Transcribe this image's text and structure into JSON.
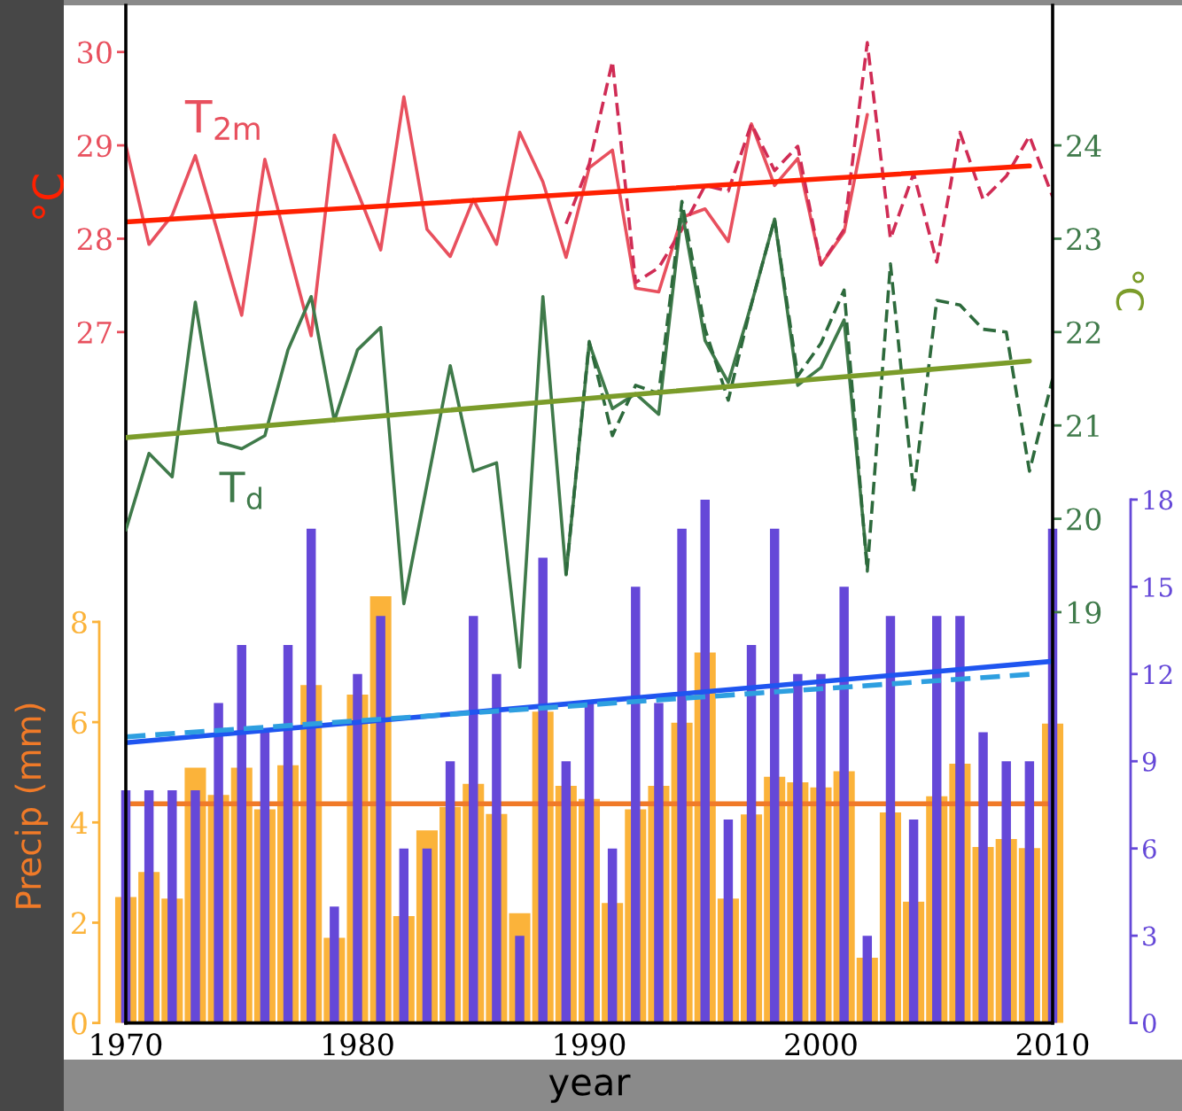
{
  "chart_data": [
    {
      "type": "line",
      "ylabel": "°C",
      "y2label": "°C",
      "tick_labels": "y",
      "xlim": [
        1970,
        2010
      ],
      "ylim": [
        19.6,
        30.5
      ],
      "yticks": [
        27,
        28,
        29,
        30
      ],
      "y2lim": [
        14.6,
        25.5
      ],
      "y2ticks": [
        19,
        20,
        21,
        22,
        23,
        24
      ],
      "series": [
        {
          "name": "T$_{2m}$",
          "color": "#e8505e",
          "x": [
            1970,
            1971,
            1972,
            1973,
            1974,
            1975,
            1976,
            1977,
            1978,
            1979,
            1980,
            1981,
            1982,
            1983,
            1984,
            1985,
            1986,
            1987,
            1988,
            1989,
            1990,
            1991,
            1992,
            1993,
            1994,
            1995,
            1996,
            1997,
            1998,
            1999,
            2000,
            2001,
            2002
          ],
          "values": [
            29.0,
            27.94,
            28.25,
            28.89,
            28.04,
            27.18,
            28.85,
            27.9,
            26.96,
            29.11,
            28.5,
            27.88,
            29.52,
            28.1,
            27.81,
            28.42,
            27.94,
            29.14,
            28.61,
            27.8,
            28.76,
            28.95,
            27.47,
            27.43,
            28.23,
            28.32,
            27.97,
            29.23,
            28.57,
            28.86,
            27.72,
            28.07,
            29.33
          ]
        },
        {
          "color": "#d02c55",
          "line_style": "dashed",
          "x": [
            1989,
            1990,
            1991,
            1992,
            1993,
            1994,
            1995,
            1996,
            1997,
            1998,
            1999,
            2000,
            2001,
            2002,
            2003,
            2004,
            2005,
            2006,
            2007,
            2008,
            2009,
            2010
          ],
          "values": [
            28.16,
            28.8,
            29.9,
            27.53,
            27.69,
            28.1,
            28.57,
            28.51,
            29.23,
            28.73,
            28.99,
            27.72,
            28.1,
            30.1,
            28.0,
            28.7,
            27.75,
            29.14,
            28.42,
            28.67,
            29.1,
            28.45
          ]
        },
        {
          "color": "#ff2000",
          "x": [
            1970,
            2009
          ],
          "values": [
            28.18,
            28.78
          ]
        },
        {
          "name": "T$_{d}$",
          "axis": "y2",
          "color": "#3f7a4a",
          "x": [
            1970,
            1971,
            1972,
            1973,
            1974,
            1975,
            1976,
            1977,
            1978,
            1979,
            1980,
            1981,
            1982,
            1983,
            1984,
            1985,
            1986,
            1987,
            1988,
            1989,
            1990,
            1991,
            1992,
            1993,
            1994,
            1995,
            1996,
            1997,
            1998,
            1999,
            2000,
            2001,
            2002
          ],
          "values": [
            19.88,
            20.7,
            20.45,
            22.32,
            20.82,
            20.75,
            20.89,
            21.81,
            22.38,
            21.05,
            21.81,
            22.05,
            19.09,
            20.37,
            21.64,
            20.51,
            20.6,
            18.41,
            22.38,
            19.4,
            21.88,
            21.18,
            21.34,
            21.12,
            23.3,
            21.91,
            21.46,
            22.3,
            23.21,
            21.43,
            21.62,
            22.13,
            19.5
          ]
        },
        {
          "axis": "y2",
          "color": "#2d6a3c",
          "line_style": "dashed",
          "x": [
            1989,
            1990,
            1991,
            1992,
            1993,
            1994,
            1995,
            1996,
            1997,
            1998,
            1999,
            2000,
            2001,
            2002,
            2003,
            2004,
            2005,
            2006,
            2007,
            2008,
            2009,
            2010
          ],
          "values": [
            19.4,
            21.9,
            20.89,
            21.43,
            21.34,
            23.4,
            22.03,
            21.27,
            22.3,
            23.21,
            21.53,
            21.88,
            22.45,
            19.44,
            22.73,
            20.29,
            22.34,
            22.29,
            22.03,
            22.0,
            20.51,
            21.5
          ]
        },
        {
          "axis": "y2",
          "color": "#7b9c2a",
          "x": [
            1970,
            2009
          ],
          "values": [
            20.87,
            21.69
          ]
        }
      ]
    },
    {
      "type": "bar",
      "xlabel": "year",
      "ylabel": "Precip (mm)",
      "xlim": [
        1970,
        2010
      ],
      "xticks": [
        1970,
        {
          "value": 1975,
          "label": null
        },
        1980,
        {
          "value": 1985,
          "label": null
        },
        1990,
        {
          "value": 1995,
          "label": null
        },
        2000,
        {
          "value": 2005,
          "label": null
        },
        2010
      ],
      "ylim": [
        0,
        20.3
      ],
      "yticks": [
        0,
        2,
        4,
        6,
        8
      ],
      "y2lim": [
        0,
        35
      ],
      "y2ticks": [
        0,
        3,
        6,
        9,
        12,
        15,
        18
      ],
      "series": [
        {
          "color": "#fbb33a",
          "x": [
            1970,
            1971,
            1972,
            1973,
            1974,
            1975,
            1976,
            1977,
            1978,
            1979,
            1980,
            1981,
            1982,
            1983,
            1984,
            1985,
            1986,
            1987,
            1988,
            1989,
            1990,
            1991,
            1992,
            1993,
            1994,
            1995,
            1996,
            1997,
            1998,
            1999,
            2000,
            2001,
            2002,
            2003,
            2004,
            2005,
            2006,
            2007,
            2008,
            2009,
            2010
          ],
          "values": [
            2.51,
            3.01,
            2.48,
            5.09,
            4.55,
            5.09,
            4.26,
            5.14,
            6.74,
            1.7,
            6.55,
            8.51,
            2.13,
            3.84,
            4.31,
            4.77,
            4.17,
            2.19,
            6.21,
            4.73,
            4.47,
            2.39,
            4.26,
            4.73,
            5.99,
            7.39,
            2.48,
            4.16,
            4.91,
            4.8,
            4.7,
            5.02,
            1.3,
            4.2,
            2.42,
            4.52,
            5.17,
            3.51,
            3.67,
            3.49,
            5.97
          ]
        },
        {
          "type": "line",
          "color": "#f07a28",
          "x": [
            1970,
            2010
          ],
          "values": [
            4.37,
            4.37
          ]
        },
        {
          "axis": "y2",
          "color": "#6548d8",
          "x": [
            1970,
            1971,
            1972,
            1973,
            1974,
            1975,
            1976,
            1977,
            1978,
            1979,
            1980,
            1981,
            1982,
            1983,
            1984,
            1985,
            1986,
            1987,
            1988,
            1989,
            1990,
            1991,
            1992,
            1993,
            1994,
            1995,
            1996,
            1997,
            1998,
            1999,
            2000,
            2001,
            2002,
            2003,
            2004,
            2005,
            2006,
            2007,
            2008,
            2009,
            2010
          ],
          "values": [
            8,
            8,
            8,
            8,
            11,
            13,
            10,
            13,
            17,
            4,
            12,
            14,
            6,
            6,
            9,
            14,
            12,
            3,
            16,
            9,
            11,
            6,
            15,
            11,
            17,
            18,
            7,
            13,
            17,
            12,
            12,
            15,
            3,
            14,
            7,
            14,
            14,
            10,
            9,
            9,
            17
          ]
        },
        {
          "type": "line",
          "axis": "y2",
          "color": "#1f55f0",
          "x": [
            1970,
            2010
          ],
          "values": [
            9.64,
            12.44
          ]
        },
        {
          "type": "line",
          "axis": "y2",
          "color": "#2e9fe0",
          "line_style": "dashed",
          "x": [
            1970,
            2009
          ],
          "values": [
            9.84,
            11.99
          ]
        }
      ]
    }
  ]
}
